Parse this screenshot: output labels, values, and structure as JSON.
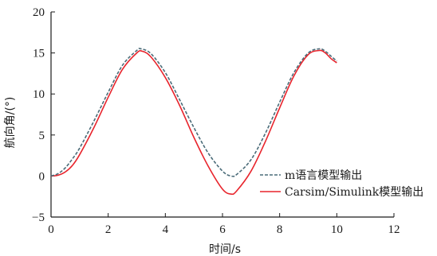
{
  "chart_data": {
    "type": "line",
    "title": "",
    "xlabel": "时间/s",
    "ylabel": "航向角/(°)",
    "xlim": [
      0,
      12
    ],
    "ylim": [
      -5,
      20
    ],
    "xticks": [
      0,
      2,
      4,
      6,
      8,
      10,
      12
    ],
    "yticks": [
      -5,
      0,
      5,
      10,
      15,
      20
    ],
    "xtick_labels": [
      "0",
      "2",
      "4",
      "6",
      "8",
      "10",
      "12"
    ],
    "ytick_labels": [
      "−5",
      "0",
      "5",
      "10",
      "15",
      "20"
    ],
    "grid": false,
    "legend_position": "bottom-right",
    "series": [
      {
        "name": "m语言模型输出",
        "color": "#4a6b78",
        "style": "dashed",
        "x": [
          0,
          0.25,
          0.5,
          0.75,
          1.0,
          1.5,
          2.0,
          2.5,
          3.0,
          3.15,
          3.5,
          4.0,
          4.5,
          5.0,
          5.5,
          6.0,
          6.3,
          6.5,
          7.0,
          7.5,
          8.0,
          8.5,
          9.0,
          9.4,
          9.6,
          9.8,
          10.0
        ],
        "y": [
          0.0,
          0.3,
          1.0,
          2.1,
          3.4,
          6.7,
          10.2,
          13.5,
          15.3,
          15.5,
          14.9,
          12.6,
          9.3,
          5.9,
          2.8,
          0.6,
          0.0,
          0.2,
          2.0,
          5.2,
          9.0,
          12.6,
          15.0,
          15.5,
          15.2,
          14.6,
          14.0
        ]
      },
      {
        "name": "Carsim/Simulink模型输出",
        "color": "#e8242c",
        "style": "solid",
        "x": [
          0,
          0.25,
          0.5,
          0.75,
          1.0,
          1.5,
          2.0,
          2.5,
          3.0,
          3.2,
          3.5,
          4.0,
          4.5,
          5.0,
          5.5,
          6.0,
          6.3,
          6.5,
          7.0,
          7.5,
          8.0,
          8.5,
          9.0,
          9.4,
          9.6,
          9.8,
          10.0
        ],
        "y": [
          0.0,
          0.1,
          0.5,
          1.3,
          2.6,
          5.9,
          9.6,
          13.0,
          15.0,
          15.2,
          14.5,
          12.0,
          8.6,
          4.7,
          1.2,
          -1.6,
          -2.2,
          -1.8,
          0.6,
          4.2,
          8.3,
          12.2,
          14.8,
          15.3,
          15.0,
          14.3,
          13.8
        ]
      }
    ]
  }
}
